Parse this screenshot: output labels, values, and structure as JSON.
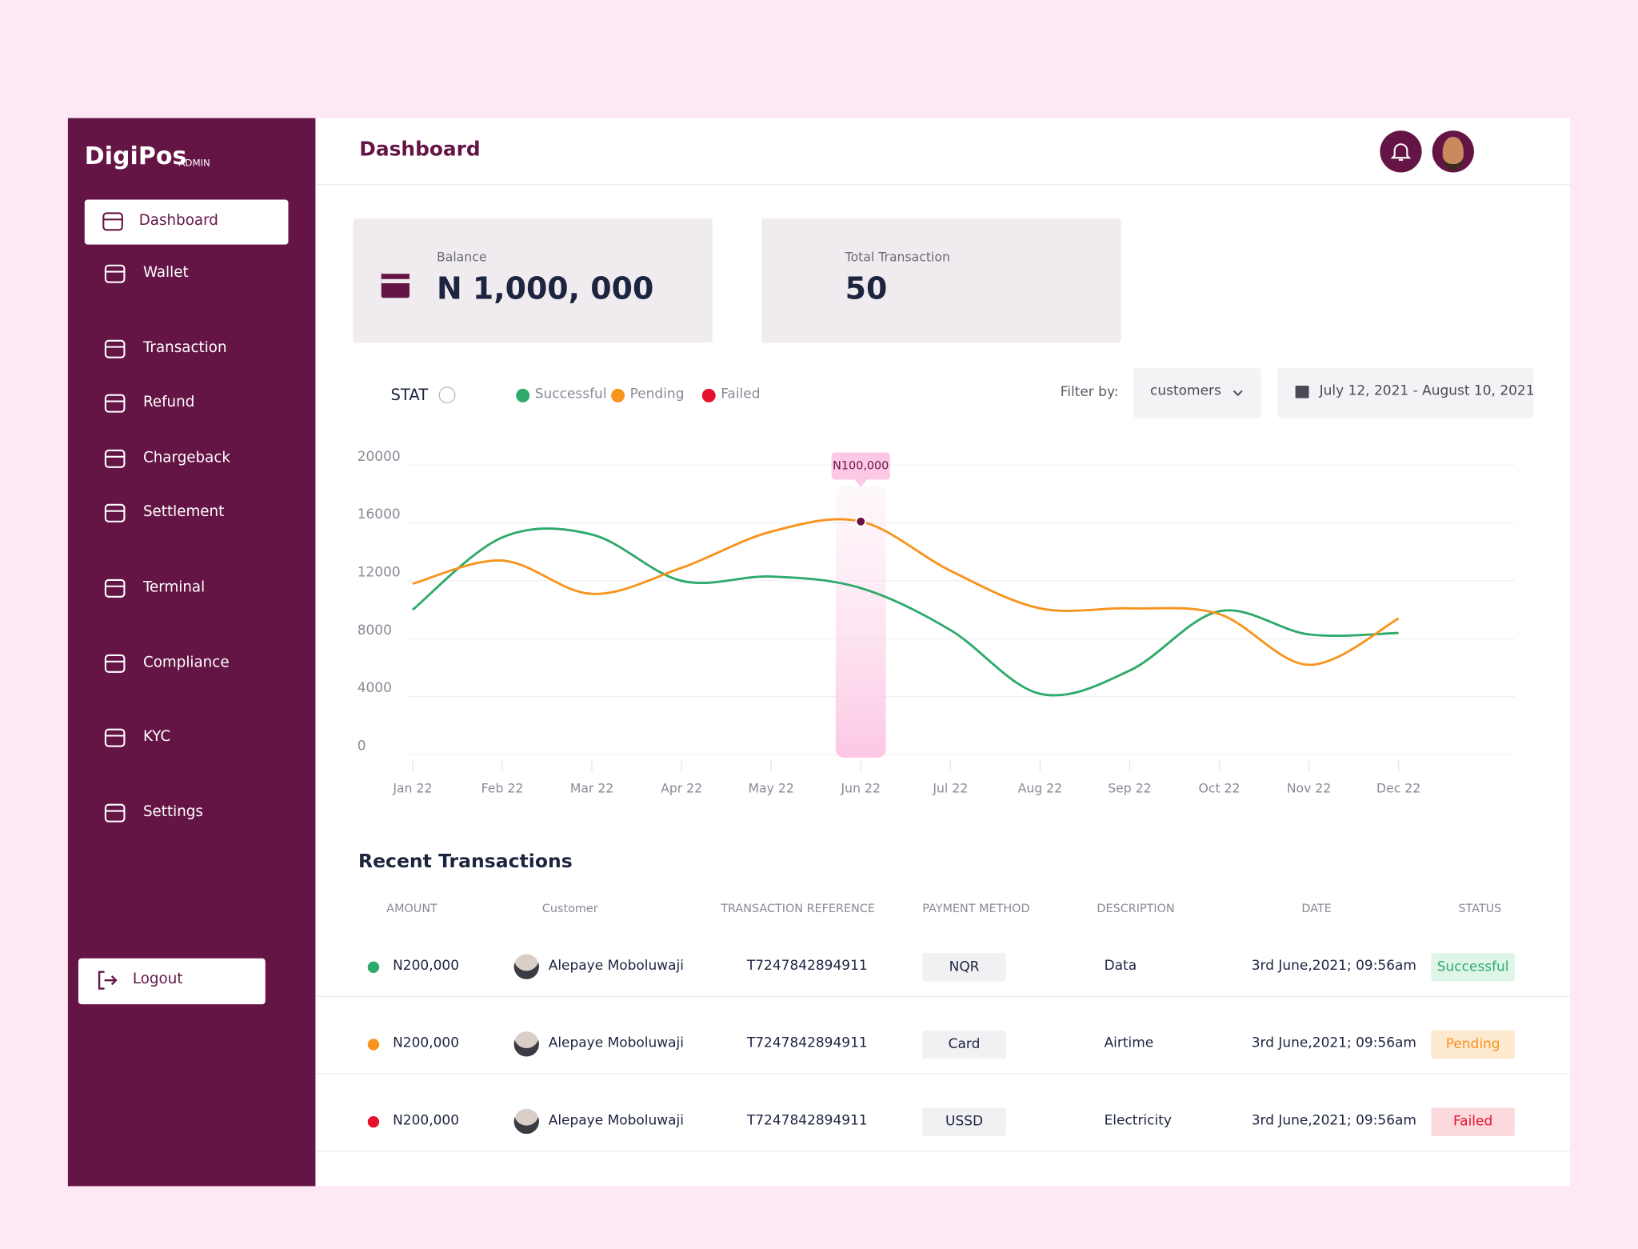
{
  "brand": {
    "name": "DigiPos",
    "tag": "ADMIN"
  },
  "nav": [
    "Dashboard",
    "Wallet",
    "Transaction",
    "Refund",
    "Chargeback",
    "Settlement",
    "Terminal",
    "Compliance",
    "KYC",
    "Settings"
  ],
  "logout": "Logout",
  "header": {
    "title": "Dashboard"
  },
  "cards": [
    {
      "label": "Balance",
      "value": "N 1,000, 000"
    },
    {
      "label": "Total Transaction",
      "value": "50"
    }
  ],
  "chart_data": {
    "type": "line",
    "title": "STAT",
    "categories": [
      "Jan 22",
      "Feb 22",
      "Mar 22",
      "Apr 22",
      "May 22",
      "Jun 22",
      "Jul 22",
      "Aug 22",
      "Sep 22",
      "Oct 22",
      "Nov 22",
      "Dec 22"
    ],
    "series": [
      {
        "name": "Successful",
        "color": "#2eaa6b",
        "values": [
          10000,
          15000,
          15200,
          12000,
          12300,
          11500,
          8600,
          4200,
          5800,
          9900,
          8300,
          8400
        ]
      },
      {
        "name": "Pending",
        "color": "#f7941d",
        "values": [
          11800,
          13400,
          11100,
          12900,
          15400,
          16100,
          12700,
          10100,
          10100,
          9700,
          6200,
          9400
        ]
      },
      {
        "name": "Failed",
        "color": "#e8112d",
        "values": [
          null,
          null,
          null,
          null,
          null,
          null,
          null,
          null,
          null,
          null,
          null,
          null
        ]
      }
    ],
    "ylim": [
      0,
      20000
    ],
    "yticks": [
      0,
      4000,
      8000,
      12000,
      16000,
      20000
    ],
    "grid": true,
    "annotation": "N100,000"
  },
  "filter": {
    "label": "Filter by:",
    "value": "customers",
    "date_range": "July 12, 2021 - August 10, 2021"
  },
  "table": {
    "title": "Recent Transactions",
    "columns": [
      "AMOUNT",
      "Customer",
      "TRANSACTION REFERENCE",
      "PAYMENT METHOD",
      "DESCRIPTION",
      "DATE",
      "STATUS"
    ],
    "rows": [
      [
        "N200,000",
        "Alepaye Moboluwaji",
        "T7247842894911",
        "NQR",
        "Data",
        "3rd June,2021; 09:56am",
        "Successful"
      ],
      [
        "N200,000",
        "Alepaye Moboluwaji",
        "T7247842894911",
        "Card",
        "Airtime",
        "3rd June,2021; 09:56am",
        "Pending"
      ],
      [
        "N200,000",
        "Alepaye Moboluwaji",
        "T7247842894911",
        "USSD",
        "Electricity",
        "3rd June,2021; 09:56am",
        "Failed"
      ]
    ]
  }
}
